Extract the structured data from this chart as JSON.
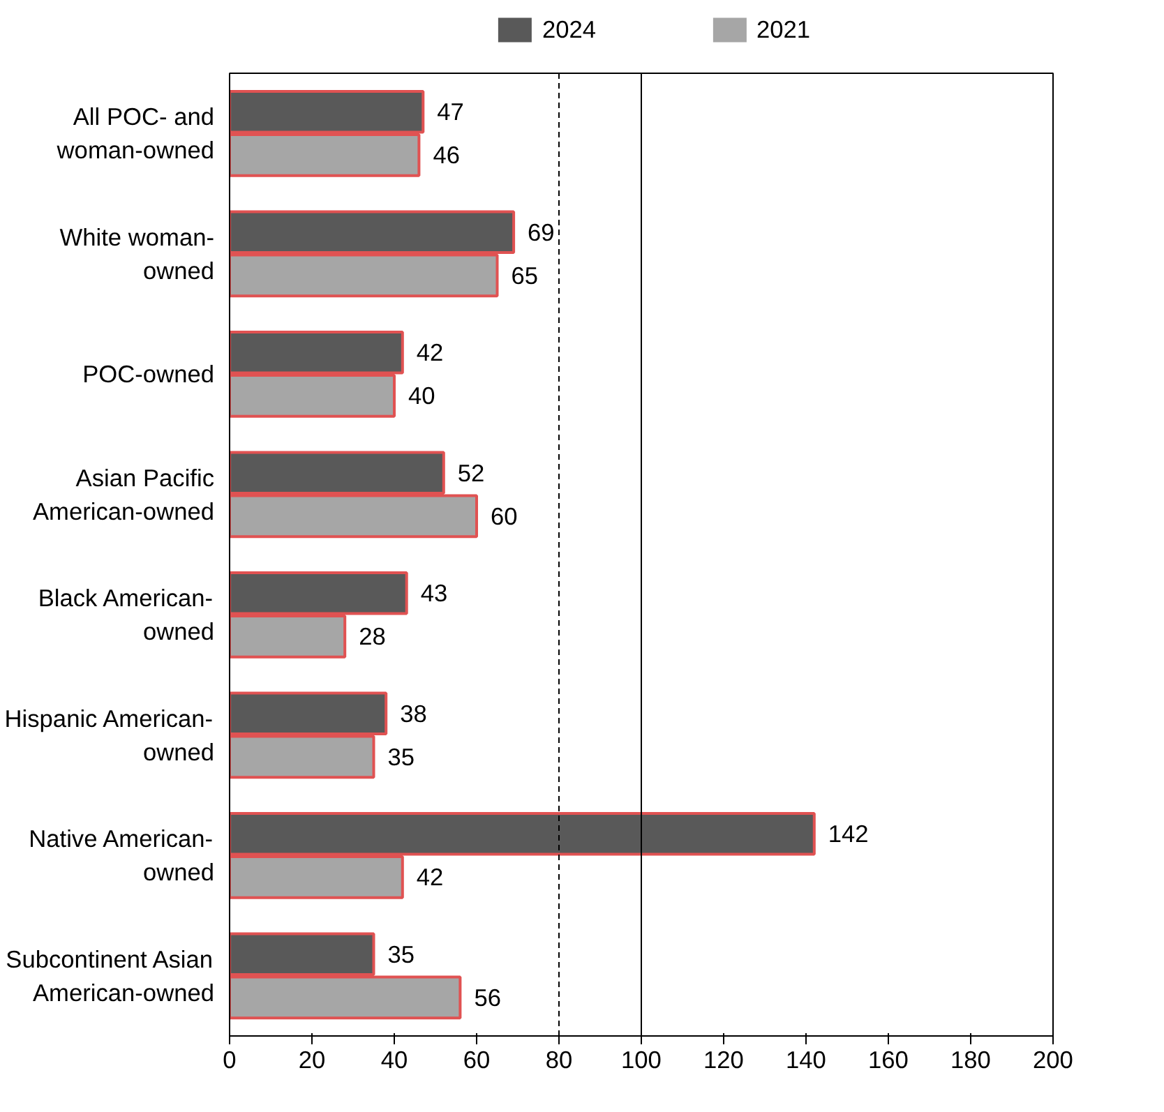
{
  "chart_data": {
    "type": "bar",
    "orientation": "horizontal",
    "categories": [
      "All POC- and\nwoman-owned",
      "White woman-\nowned",
      "POC-owned",
      "Asian Pacific\nAmerican-owned",
      "Black American-\nowned",
      "Hispanic American-\nowned",
      "Native American-\nowned",
      "Subcontinent Asian\nAmerican-owned"
    ],
    "series": [
      {
        "name": "2024",
        "color": "#595959",
        "values": [
          47,
          69,
          42,
          52,
          43,
          38,
          142,
          35
        ],
        "value_labels": [
          "47",
          "69",
          "42",
          "52",
          "43",
          "38",
          "142",
          "35"
        ]
      },
      {
        "name": "2021",
        "color": "#a6a6a6",
        "values": [
          46,
          65,
          40,
          60,
          28,
          35,
          42,
          56
        ],
        "value_labels": [
          "46",
          "65",
          "40",
          "60",
          "28",
          "35",
          "42",
          "56"
        ]
      }
    ],
    "xlim": [
      0,
      200
    ],
    "xticks": [
      0,
      20,
      40,
      60,
      80,
      100,
      120,
      140,
      160,
      180,
      200
    ],
    "ref_lines": [
      {
        "axis": "x",
        "value": 80,
        "line_style": "dashed",
        "color": "#000000"
      },
      {
        "axis": "x",
        "value": 100,
        "line_style": "solid",
        "color": "#000000"
      }
    ],
    "grid": false,
    "legend": "top"
  }
}
